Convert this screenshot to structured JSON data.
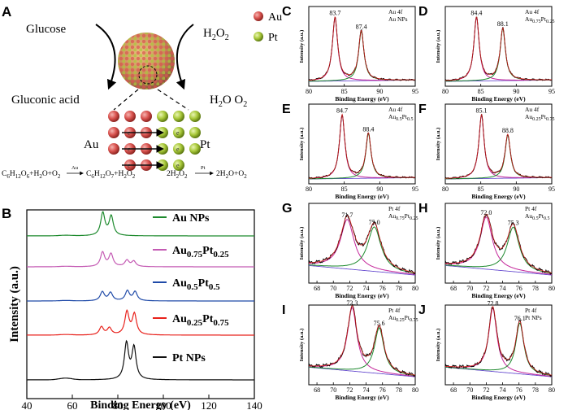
{
  "figure": {
    "panel_letters": [
      "A",
      "B",
      "C",
      "D",
      "E",
      "F",
      "G",
      "H",
      "I",
      "J"
    ],
    "schematic": {
      "glucose": "Glucose",
      "gluconic_acid": "Gluconic acid",
      "h2o2": "H2O2",
      "h2o_o2": "H2O  O2",
      "legend_au": "Au",
      "legend_pt": "Pt",
      "au_side": "Au",
      "pt_side": "Pt",
      "electron": "e",
      "reaction1_left": "C6H12O6+H2O+O2",
      "reaction1_cat": "Au",
      "reaction1_right": "C6H12O7+H2O2",
      "reaction2_left": "2H2O2",
      "reaction2_cat": "Pt",
      "reaction2_right": "2H2O+O2",
      "colors": {
        "au": "#d9534f",
        "pt": "#a9c93a"
      }
    }
  },
  "chart_data": [
    {
      "panel": "B",
      "type": "line",
      "title": "",
      "xlabel": "Binding Energy (eV)",
      "ylabel": "Intensity (a.u.)",
      "xlim": [
        40,
        140
      ],
      "xticks": [
        40,
        60,
        80,
        100,
        120,
        140
      ],
      "series": [
        {
          "name": "Au NPs",
          "color": "#1e8a2e",
          "peaks": [
            [
              73.4,
              1.0
            ],
            [
              77.1,
              0.85
            ]
          ]
        },
        {
          "name": "Au0.75Pt0.25",
          "color": "#c45ab3",
          "peaks": [
            [
              73.3,
              0.8
            ],
            [
              77.0,
              0.7
            ],
            [
              84.0,
              0.35
            ],
            [
              87.0,
              0.3
            ]
          ]
        },
        {
          "name": "Au0.5Pt0.5",
          "color": "#1f4aa8",
          "peaks": [
            [
              73.2,
              0.5
            ],
            [
              76.8,
              0.45
            ],
            [
              84.2,
              0.55
            ],
            [
              87.6,
              0.5
            ]
          ]
        },
        {
          "name": "Au0.25Pt0.75",
          "color": "#e8211b",
          "peaks": [
            [
              72.8,
              0.35
            ],
            [
              76.3,
              0.3
            ],
            [
              84.0,
              1.0
            ],
            [
              87.3,
              0.9
            ]
          ]
        },
        {
          "name": "Pt NPs",
          "color": "#111111",
          "peaks": [
            [
              83.8,
              1.7
            ],
            [
              87.1,
              1.5
            ]
          ]
        }
      ],
      "legend": [
        {
          "base": "Au NPs",
          "sub1": "",
          "sub2": ""
        },
        {
          "base": "Au",
          "sub1": "0.75",
          "mid": "Pt",
          "sub2": "0.25"
        },
        {
          "base": "Au",
          "sub1": "0.5",
          "mid": "Pt",
          "sub2": "0.5"
        },
        {
          "base": "Au",
          "sub1": "0.25",
          "mid": "Pt",
          "sub2": "0.75"
        },
        {
          "base": "Pt NPs",
          "sub1": "",
          "sub2": ""
        }
      ]
    },
    {
      "panel": "C",
      "type": "line",
      "element": "Au 4f",
      "sample": "Au NPs",
      "xlabel": "Binding Energy (eV)",
      "ylabel": "Intensity (a.u.)",
      "xlim": [
        80,
        95
      ],
      "xticks": [
        80,
        85,
        90,
        95
      ],
      "peaks": [
        83.7,
        87.4
      ],
      "peak_labels": [
        "83.7",
        "87.4"
      ],
      "heights": [
        1.0,
        0.78
      ],
      "width": 0.45
    },
    {
      "panel": "D",
      "type": "line",
      "element": "Au 4f",
      "sample": "Au0.75Pt0.25",
      "xlabel": "Binding Energy (eV)",
      "ylabel": "Intensity (a.u.)",
      "xlim": [
        80,
        95
      ],
      "xticks": [
        80,
        85,
        90,
        95
      ],
      "peaks": [
        84.4,
        88.1
      ],
      "peak_labels": [
        "84.4",
        "88.1"
      ],
      "heights": [
        1.0,
        0.82
      ],
      "width": 0.45
    },
    {
      "panel": "E",
      "type": "line",
      "element": "Au 4f",
      "sample": "Au0.5Pt0.5",
      "xlabel": "Binding Energy (eV)",
      "ylabel": "Intensity (a.u.)",
      "xlim": [
        80,
        95
      ],
      "xticks": [
        80,
        85,
        90,
        95
      ],
      "peaks": [
        84.7,
        88.4
      ],
      "peak_labels": [
        "84.7",
        "88.4"
      ],
      "heights": [
        1.0,
        0.7
      ],
      "width": 0.45
    },
    {
      "panel": "F",
      "type": "line",
      "element": "Au 4f",
      "sample": "Au0.25Pt0.75",
      "xlabel": "Binding Energy (eV)",
      "ylabel": "Intensity (a.u.)",
      "xlim": [
        80,
        95
      ],
      "xticks": [
        80,
        85,
        90,
        95
      ],
      "peaks": [
        85.1,
        88.8
      ],
      "peak_labels": [
        "85.1",
        "88.8"
      ],
      "heights": [
        1.0,
        0.68
      ],
      "width": 0.45
    },
    {
      "panel": "G",
      "type": "line",
      "element": "Pt 4f",
      "sample": "Au0.75Pt0.25",
      "xlabel": "Binding Energy (eV)",
      "ylabel": "Intensity (a.u.)",
      "xlim": [
        67,
        80
      ],
      "xticks": [
        68,
        70,
        72,
        74,
        76,
        78,
        80
      ],
      "peaks": [
        71.7,
        75.0
      ],
      "peak_labels": [
        "71.7",
        "75.0"
      ],
      "heights": [
        0.78,
        0.7
      ],
      "width": 1.0
    },
    {
      "panel": "H",
      "type": "line",
      "element": "Pt 4f",
      "sample": "Au0.5Pt0.5",
      "xlabel": "Binding Energy (eV)",
      "ylabel": "Intensity (a.u.)",
      "xlim": [
        67,
        80
      ],
      "xticks": [
        68,
        70,
        72,
        74,
        76,
        78,
        80
      ],
      "peaks": [
        72.0,
        75.3
      ],
      "peak_labels": [
        "72.0",
        "75.3"
      ],
      "heights": [
        0.82,
        0.7
      ],
      "width": 0.9
    },
    {
      "panel": "I",
      "type": "line",
      "element": "Pt 4f",
      "sample": "Au0.25Pt0.75",
      "xlabel": "Binding Energy (eV)",
      "ylabel": "Intensity (a.u.)",
      "xlim": [
        67,
        80
      ],
      "xticks": [
        68,
        70,
        72,
        74,
        76,
        78,
        80
      ],
      "peaks": [
        72.3,
        75.6
      ],
      "peak_labels": [
        "72.3",
        "75.6"
      ],
      "heights": [
        1.0,
        0.72
      ],
      "width": 0.7
    },
    {
      "panel": "J",
      "type": "line",
      "element": "Pt 4f",
      "sample": "Pt NPs",
      "xlabel": "Binding Energy (eV)",
      "ylabel": "Intensity (a.u.)",
      "xlim": [
        67,
        80
      ],
      "xticks": [
        68,
        70,
        72,
        74,
        76,
        78,
        80
      ],
      "peaks": [
        72.8,
        76.1
      ],
      "peak_labels": [
        "72.8",
        "76.1"
      ],
      "heights": [
        1.0,
        0.8
      ],
      "width": 0.6
    }
  ]
}
